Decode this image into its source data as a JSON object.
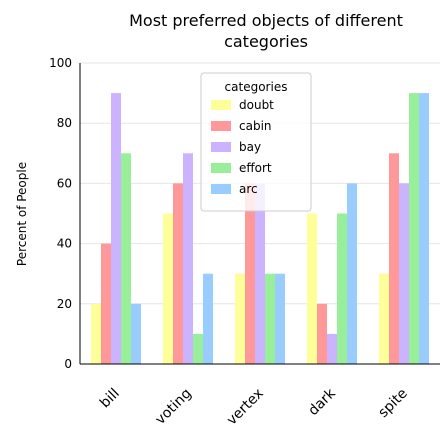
{
  "chart_data": {
    "type": "bar",
    "title": "Most preferred objects of different categories",
    "title_lines": [
      "Most preferred objects of different",
      "categories"
    ],
    "xlabel": "",
    "ylabel": "Percent of People",
    "ylim": [
      0,
      100
    ],
    "yticks": [
      "0",
      "20",
      "40",
      "60",
      "80",
      "100"
    ],
    "grid": true,
    "legend_title": "categories",
    "legend_position": "top-right",
    "categories": [
      "bill",
      "voting",
      "vertex",
      "dark",
      "spite"
    ],
    "series": [
      {
        "name": "doubt",
        "color": "#ffff99",
        "values": [
          20,
          50,
          30,
          50,
          30
        ]
      },
      {
        "name": "cabin",
        "color": "#ff9999",
        "values": [
          40,
          60,
          60,
          20,
          70
        ]
      },
      {
        "name": "bay",
        "color": "#ccb3ff",
        "values": [
          90,
          70,
          60,
          10,
          60
        ]
      },
      {
        "name": "effort",
        "color": "#99ee99",
        "values": [
          70,
          10,
          30,
          50,
          90
        ]
      },
      {
        "name": "arc",
        "color": "#99ccff",
        "values": [
          20,
          30,
          30,
          60,
          90
        ]
      }
    ]
  }
}
